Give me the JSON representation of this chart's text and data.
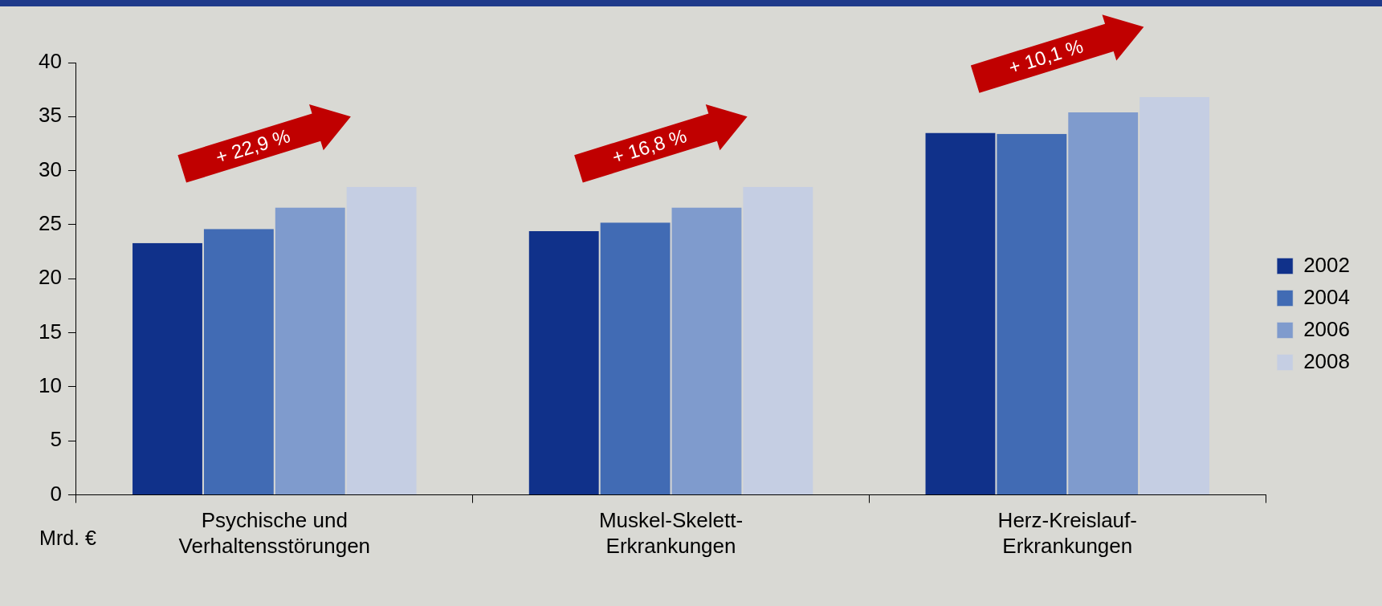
{
  "chart_data": {
    "type": "bar",
    "ylabel": "Mrd. €",
    "categories": [
      "Psychische und Verhaltensstörungen",
      "Muskel-Skelett-Erkrankungen",
      "Herz-Kreislauf-Erkrankungen"
    ],
    "series": [
      {
        "name": "2002",
        "color": "#10318a",
        "values": [
          23.3,
          24.4,
          33.5
        ]
      },
      {
        "name": "2004",
        "color": "#416bb4",
        "values": [
          24.6,
          25.2,
          33.4
        ]
      },
      {
        "name": "2006",
        "color": "#7f9bcd",
        "values": [
          26.6,
          26.6,
          35.4
        ]
      },
      {
        "name": "2008",
        "color": "#c5cee3",
        "values": [
          28.5,
          28.5,
          36.8
        ]
      }
    ],
    "ylim": [
      0,
      40
    ],
    "yticks": [
      0,
      5,
      10,
      15,
      20,
      25,
      30,
      35,
      40
    ],
    "grid": false,
    "legend": "right",
    "annotations": [
      "+ 22,9 %",
      "+ 16,8 %",
      "+ 10,1 %"
    ]
  }
}
